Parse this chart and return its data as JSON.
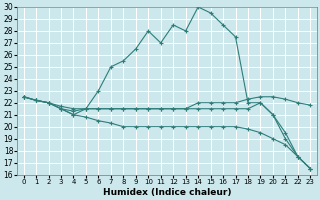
{
  "xlabel": "Humidex (Indice chaleur)",
  "bg_color": "#cce8ec",
  "grid_color": "#ffffff",
  "line_color": "#2e7d7a",
  "xlim": [
    -0.5,
    23.5
  ],
  "ylim": [
    16,
    30
  ],
  "xticks": [
    0,
    1,
    2,
    3,
    4,
    5,
    6,
    7,
    8,
    9,
    10,
    11,
    12,
    13,
    14,
    15,
    16,
    17,
    18,
    19,
    20,
    21,
    22,
    23
  ],
  "yticks": [
    16,
    17,
    18,
    19,
    20,
    21,
    22,
    23,
    24,
    25,
    26,
    27,
    28,
    29,
    30
  ],
  "series": [
    [
      22.5,
      22.2,
      22.0,
      21.5,
      21.0,
      21.5,
      23.0,
      25.0,
      25.5,
      26.5,
      28.0,
      27.0,
      28.5,
      28.0,
      30.0,
      29.5,
      28.5,
      27.5,
      22.0,
      22.0,
      21.0,
      19.0,
      17.5,
      16.5
    ],
    [
      22.5,
      22.2,
      22.0,
      21.7,
      21.5,
      21.5,
      21.5,
      21.5,
      21.5,
      21.5,
      21.5,
      21.5,
      21.5,
      21.5,
      22.0,
      22.0,
      22.0,
      22.0,
      22.3,
      22.5,
      22.5,
      22.3,
      22.0,
      21.8
    ],
    [
      22.5,
      22.2,
      22.0,
      21.5,
      21.3,
      21.5,
      21.5,
      21.5,
      21.5,
      21.5,
      21.5,
      21.5,
      21.5,
      21.5,
      21.5,
      21.5,
      21.5,
      21.5,
      21.5,
      22.0,
      21.0,
      19.5,
      17.5,
      16.5
    ],
    [
      22.5,
      22.2,
      22.0,
      21.5,
      21.0,
      20.8,
      20.5,
      20.3,
      20.0,
      20.0,
      20.0,
      20.0,
      20.0,
      20.0,
      20.0,
      20.0,
      20.0,
      20.0,
      19.8,
      19.5,
      19.0,
      18.5,
      17.5,
      16.5
    ]
  ]
}
